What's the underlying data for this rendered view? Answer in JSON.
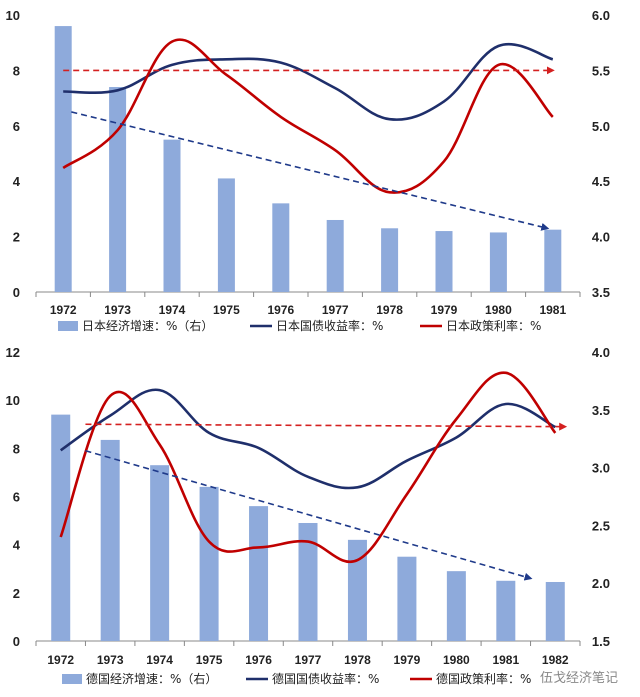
{
  "colors": {
    "bar": "#8eaadb",
    "bond": "#1f2f6b",
    "policy": "#c00000",
    "trend_bar": "#1f3a8a",
    "trend_policy": "#d42020",
    "axis": "#888888"
  },
  "watermark": "伍戈经济笔记",
  "chart_data": [
    {
      "type": "bar",
      "title": "",
      "categories": [
        "1972",
        "1973",
        "1974",
        "1975",
        "1976",
        "1977",
        "1978",
        "1979",
        "1980",
        "1981"
      ],
      "left_axis": {
        "min": 0,
        "max": 10,
        "step": 2,
        "tick_labels": [
          "0",
          "2",
          "4",
          "6",
          "8",
          "10"
        ]
      },
      "right_axis": {
        "min": 3.5,
        "max": 6.0,
        "step": 0.5,
        "tick_labels": [
          "3.5",
          "4.0",
          "4.5",
          "5.0",
          "5.5",
          "6.0"
        ]
      },
      "series": [
        {
          "name": "日本经济增速：%（右）",
          "kind": "bar",
          "axis": "left",
          "values": [
            9.6,
            7.4,
            5.5,
            4.1,
            3.2,
            2.6,
            2.3,
            2.2,
            2.15,
            2.25
          ]
        },
        {
          "name": "日本国债收益率：%",
          "kind": "line",
          "axis": "right",
          "points": [
            [
              0,
              5.31
            ],
            [
              1,
              5.32
            ],
            [
              2,
              5.55
            ],
            [
              3,
              5.6
            ],
            [
              4,
              5.57
            ],
            [
              5,
              5.34
            ],
            [
              6,
              5.06
            ],
            [
              7,
              5.22
            ],
            [
              8,
              5.72
            ],
            [
              9,
              5.6
            ]
          ]
        },
        {
          "name": "日本政策利率：%",
          "kind": "line",
          "axis": "right",
          "points": [
            [
              0,
              4.62
            ],
            [
              1,
              4.96
            ],
            [
              2,
              5.76
            ],
            [
              3,
              5.46
            ],
            [
              4,
              5.08
            ],
            [
              5,
              4.78
            ],
            [
              6,
              4.4
            ],
            [
              7,
              4.68
            ],
            [
              8,
              5.55
            ],
            [
              9,
              5.08
            ]
          ]
        }
      ],
      "trend_lines": [
        {
          "name": "growth-trend",
          "axis": "left",
          "from": [
            0.15,
            6.5
          ],
          "to": [
            8.9,
            2.3
          ]
        },
        {
          "name": "policy-rate-trend",
          "axis": "left",
          "from": [
            0.0,
            8.0
          ],
          "to": [
            9.0,
            8.0
          ]
        }
      ],
      "legend": {
        "position": "bottom",
        "labels": [
          "日本经济增速：%（右）",
          "日本国债收益率：%",
          "日本政策利率：%"
        ]
      }
    },
    {
      "type": "bar",
      "title": "",
      "categories": [
        "1972",
        "1973",
        "1974",
        "1975",
        "1976",
        "1977",
        "1978",
        "1979",
        "1980",
        "1981",
        "1982"
      ],
      "left_axis": {
        "min": 0,
        "max": 12,
        "step": 2,
        "tick_labels": [
          "0",
          "2",
          "4",
          "6",
          "8",
          "10",
          "12"
        ]
      },
      "right_axis": {
        "min": 1.5,
        "max": 4.0,
        "step": 0.5,
        "tick_labels": [
          "1.5",
          "2.0",
          "2.5",
          "3.0",
          "3.5",
          "4.0"
        ]
      },
      "series": [
        {
          "name": "德国经济增速：%（右）",
          "kind": "bar",
          "axis": "left",
          "values": [
            9.4,
            8.35,
            7.3,
            6.4,
            5.6,
            4.9,
            4.2,
            3.5,
            2.9,
            2.5,
            2.45
          ]
        },
        {
          "name": "德国国债收益率：%",
          "kind": "line",
          "axis": "right",
          "points": [
            [
              0,
              3.15
            ],
            [
              1,
              3.45
            ],
            [
              2,
              3.67
            ],
            [
              3,
              3.3
            ],
            [
              4,
              3.17
            ],
            [
              5,
              2.92
            ],
            [
              6,
              2.83
            ],
            [
              7,
              3.06
            ],
            [
              8,
              3.26
            ],
            [
              9,
              3.55
            ],
            [
              10,
              3.35
            ]
          ]
        },
        {
          "name": "德国政策利率：%",
          "kind": "line",
          "axis": "right",
          "points": [
            [
              0,
              2.4
            ],
            [
              1,
              3.62
            ],
            [
              2,
              3.2
            ],
            [
              3,
              2.36
            ],
            [
              4,
              2.31
            ],
            [
              5,
              2.36
            ],
            [
              6,
              2.2
            ],
            [
              7,
              2.77
            ],
            [
              8,
              3.42
            ],
            [
              9,
              3.82
            ],
            [
              10,
              3.3
            ]
          ]
        }
      ],
      "trend_lines": [
        {
          "name": "growth-trend",
          "axis": "left",
          "from": [
            0.5,
            7.9
          ],
          "to": [
            9.5,
            2.6
          ]
        },
        {
          "name": "policy-rate-trend",
          "axis": "left",
          "from": [
            0.5,
            9.0
          ],
          "to": [
            10.2,
            8.9
          ]
        }
      ],
      "legend": {
        "position": "bottom",
        "labels": [
          "德国经济增速：%（右）",
          "德国国债收益率：%",
          "德国政策利率：%"
        ]
      }
    }
  ]
}
